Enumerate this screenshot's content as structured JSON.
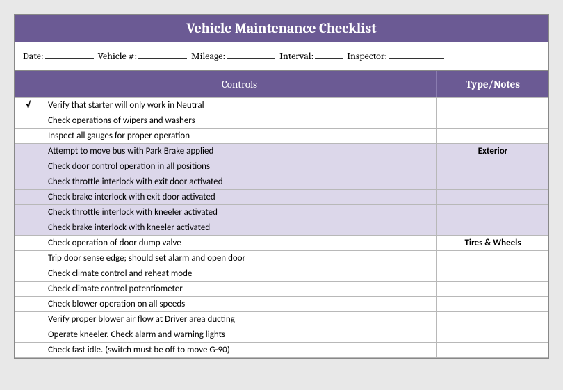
{
  "title": "Vehicle Maintenance Checklist",
  "meta": {
    "date_label": "Date:",
    "date_width": 70,
    "vehicle_label": "Vehicle #:",
    "vehicle_width": 70,
    "mileage_label": "Mileage:",
    "mileage_width": 70,
    "interval_label": "Interval:",
    "interval_width": 40,
    "inspector_label": "Inspector:",
    "inspector_width": 80
  },
  "headers": {
    "controls": "Controls",
    "notes": "Type/Notes"
  },
  "rows": [
    {
      "check": "√",
      "control": "Verify that starter will only work in Neutral",
      "note": "",
      "shaded": false
    },
    {
      "check": "",
      "control": "Check operations of wipers and washers",
      "note": "",
      "shaded": false
    },
    {
      "check": "",
      "control": "Inspect all gauges for proper operation",
      "note": "",
      "shaded": false
    },
    {
      "check": "",
      "control": "Attempt to move bus with Park Brake applied",
      "note": "Exterior",
      "shaded": true
    },
    {
      "check": "",
      "control": "Check door control operation in all positions",
      "note": "",
      "shaded": true
    },
    {
      "check": "",
      "control": "Check throttle interlock with exit door activated",
      "note": "",
      "shaded": true
    },
    {
      "check": "",
      "control": "Check brake interlock with exit door activated",
      "note": "",
      "shaded": true
    },
    {
      "check": "",
      "control": "Check throttle interlock with kneeler activated",
      "note": "",
      "shaded": true
    },
    {
      "check": "",
      "control": "Check brake interlock with kneeler activated",
      "note": "",
      "shaded": true
    },
    {
      "check": "",
      "control": "Check operation of door dump valve",
      "note": "Tires & Wheels",
      "shaded": false
    },
    {
      "check": "",
      "control": "Trip door sense edge; should set alarm and open door",
      "note": "",
      "shaded": false
    },
    {
      "check": "",
      "control": "Check climate control and reheat mode",
      "note": "",
      "shaded": false
    },
    {
      "check": "",
      "control": "Check climate control potentiometer",
      "note": "",
      "shaded": false
    },
    {
      "check": "",
      "control": "Check blower operation on all speeds",
      "note": "",
      "shaded": false
    },
    {
      "check": "",
      "control": "Verify proper blower air flow at Driver area ducting",
      "note": "",
      "shaded": false
    },
    {
      "check": "",
      "control": "Operate kneeler. Check alarm and warning lights",
      "note": "",
      "shaded": false
    },
    {
      "check": "",
      "control": "Check fast idle. (switch must be off to move G-90)",
      "note": "",
      "shaded": false
    }
  ],
  "colors": {
    "header_bg": "#6b5a94",
    "shaded_bg": "#dcd7ea",
    "border": "#b8b8b8",
    "page_bg": "#e8e8e8"
  }
}
